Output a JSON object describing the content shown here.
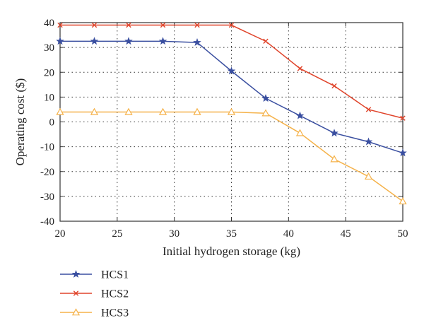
{
  "chart_data": {
    "type": "line",
    "xlabel": "Initial hydrogen storage (kg)",
    "ylabel": "Operating cost ($)",
    "xlim": [
      20,
      50
    ],
    "ylim": [
      -40,
      40
    ],
    "xticks": [
      20,
      25,
      30,
      35,
      40,
      45,
      50
    ],
    "yticks": [
      -40,
      -30,
      -20,
      -10,
      0,
      10,
      20,
      30,
      40
    ],
    "grid": true,
    "legend_position": "below-left",
    "x": [
      20,
      23,
      26,
      29,
      32,
      35,
      38,
      41,
      44,
      47,
      50
    ],
    "series": [
      {
        "name": "HCS1",
        "color": "#3a4fa0",
        "marker": "star",
        "values": [
          32.5,
          32.5,
          32.5,
          32.5,
          32,
          20.5,
          9.5,
          2.5,
          -4.5,
          -8,
          -12.5
        ]
      },
      {
        "name": "HCS2",
        "color": "#e0442b",
        "marker": "x",
        "values": [
          39,
          39,
          39,
          39,
          39,
          39,
          32.5,
          21.5,
          14.5,
          5,
          1.5
        ]
      },
      {
        "name": "HCS3",
        "color": "#f5b24a",
        "marker": "triangle",
        "values": [
          4,
          4,
          4,
          4,
          4,
          4,
          3.5,
          -4.5,
          -15,
          -22,
          -32
        ]
      }
    ]
  }
}
